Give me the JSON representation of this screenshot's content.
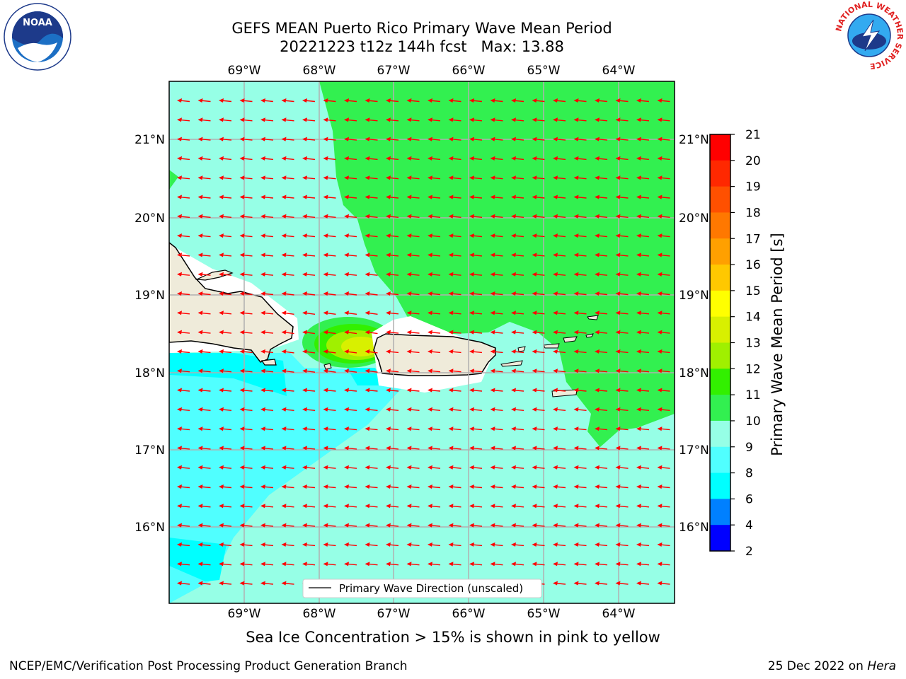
{
  "header": {
    "title_line1": "GEFS MEAN Puerto Rico Primary Wave Mean Period",
    "title_date": "20221223 t12z 144h fcst",
    "title_max": "Max: 13.88"
  },
  "logos": {
    "left": {
      "name": "noaa-logo",
      "text": "NOAA"
    },
    "right": {
      "name": "national-weather-service-logo",
      "text": "NATIONAL WEATHER SERVICE"
    }
  },
  "map": {
    "lon_labels": [
      "69°W",
      "68°W",
      "67°W",
      "66°W",
      "65°W",
      "64°W"
    ],
    "lat_labels": [
      "21°N",
      "20°N",
      "19°N",
      "18°N",
      "17°N",
      "16°N"
    ],
    "legend_label": "Primary Wave Direction (unscaled)",
    "arrow_color": "#ff0000",
    "land_color": "#efebda"
  },
  "colorbar": {
    "label": "Primary Wave Mean Period [s]",
    "ticks": [
      "21",
      "20",
      "19",
      "18",
      "17",
      "16",
      "15",
      "14",
      "13",
      "12",
      "11",
      "10",
      "9",
      "8",
      "6",
      "4",
      "2"
    ],
    "colors": [
      "#ff0000",
      "#ff2800",
      "#ff5000",
      "#ff7800",
      "#ffa000",
      "#ffc800",
      "#ffff00",
      "#d8f000",
      "#a0f000",
      "#32f000",
      "#32f050",
      "#96ffe6",
      "#50ffff",
      "#00ffff",
      "#0080ff",
      "#0000ff"
    ]
  },
  "footer": {
    "sea_ice_note": "Sea Ice Concentration > 15% is shown in pink to yellow",
    "credit": "NCEP/EMC/Verification Post Processing Product Generation Branch",
    "date_prefix": "25 Dec 2022 on ",
    "date_host": "Hera"
  }
}
